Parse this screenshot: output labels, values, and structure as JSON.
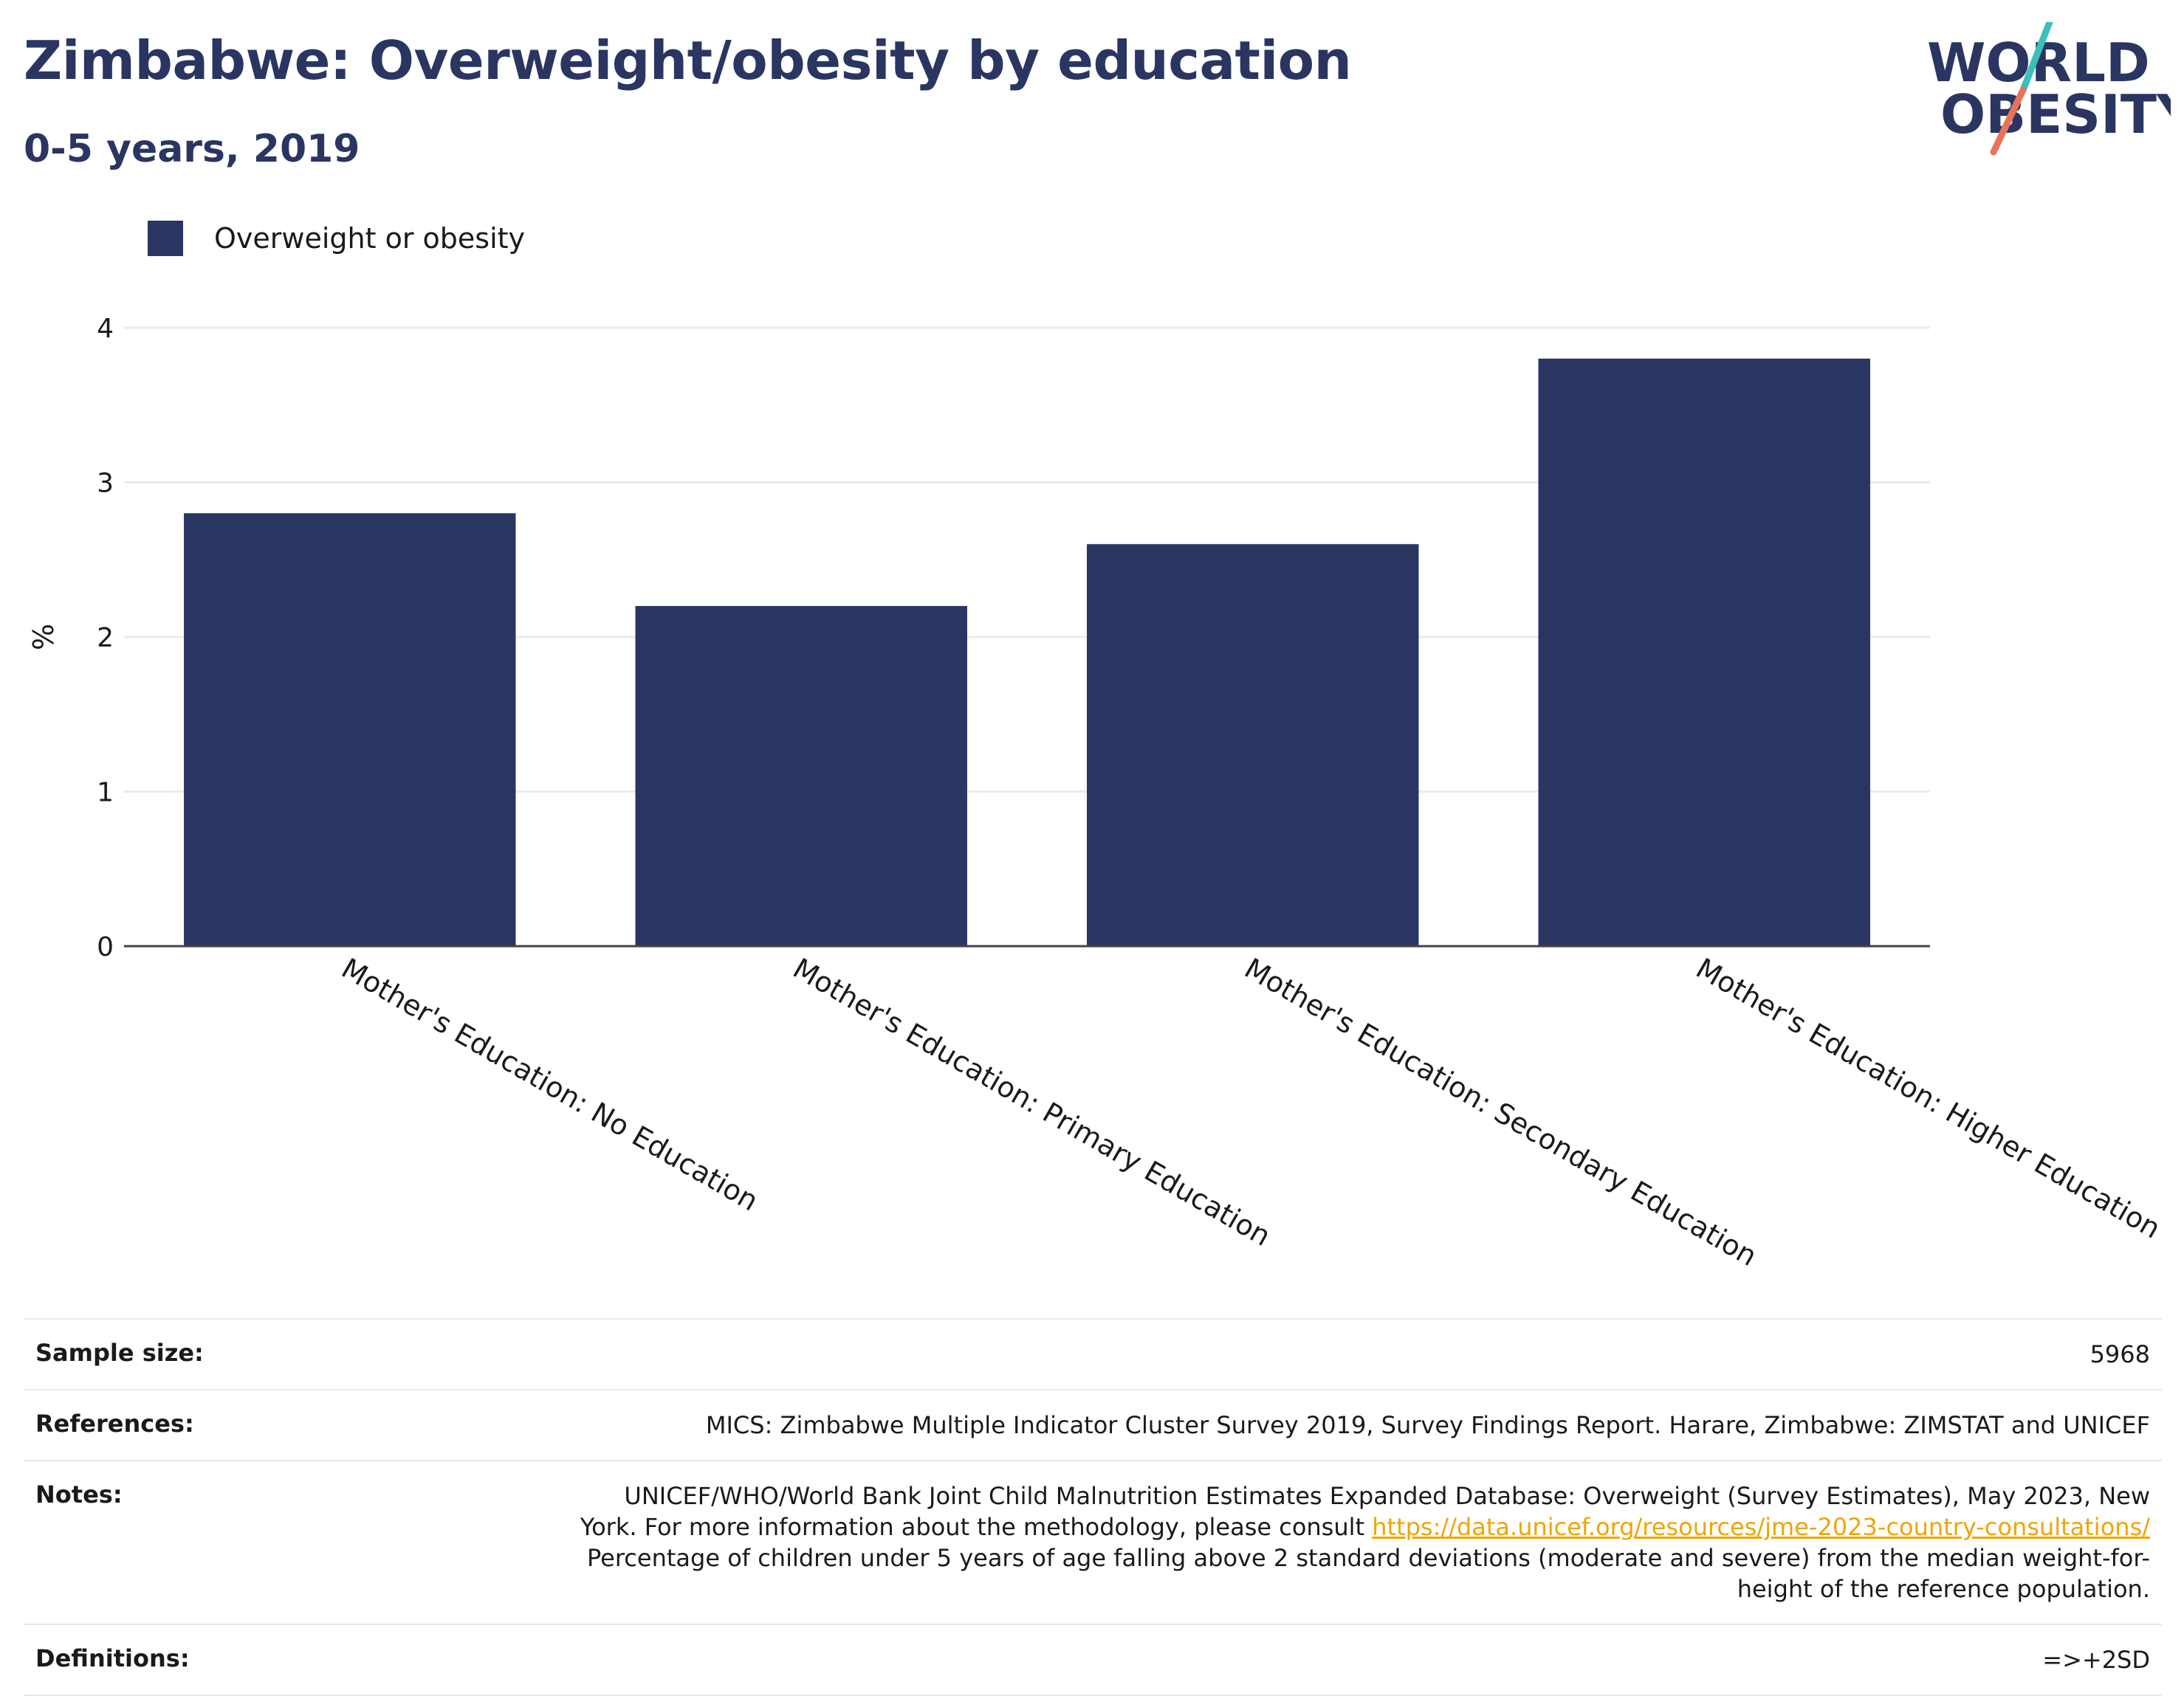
{
  "header": {
    "title": "Zimbabwe: Overweight/obesity by education",
    "subtitle": "0-5 years, 2019"
  },
  "logo": {
    "line1": "WORLD",
    "line2": "OBESITY",
    "accent_colors": [
      "#3bbfb9",
      "#e8735a"
    ]
  },
  "legend": {
    "label": "Overweight or obesity",
    "color": "#2a3562"
  },
  "chart_data": {
    "type": "bar",
    "categories": [
      "Mother's Education: No Education",
      "Mother's Education: Primary Education",
      "Mother's Education: Secondary Education",
      "Mother's Education: Higher Education"
    ],
    "series": [
      {
        "name": "Overweight or obesity",
        "values": [
          2.8,
          2.2,
          2.6,
          3.8
        ],
        "color": "#2a3562"
      }
    ],
    "ylabel": "%",
    "ylim": [
      0,
      4
    ],
    "yticks": [
      0,
      1,
      2,
      3,
      4
    ],
    "grid": true,
    "legend_position": "top-left"
  },
  "info": {
    "sample_size_label": "Sample size:",
    "sample_size_value": "5968",
    "references_label": "References:",
    "references_value": "MICS: Zimbabwe Multiple Indicator Cluster Survey 2019, Survey Findings Report. Harare, Zimbabwe: ZIMSTAT and UNICEF",
    "notes_label": "Notes:",
    "notes_line1": "UNICEF/WHO/World Bank Joint Child Malnutrition Estimates Expanded Database: Overweight (Survey Estimates), May 2023, New",
    "notes_line2": "York. For more information about the methodology, please consult",
    "notes_link": "https://data.unicef.org/resources/jme-2023-country-consultations/",
    "notes_line3": "Percentage of children under 5 years of age falling above 2 standard deviations (moderate and severe) from the median weight-for-",
    "notes_line4": "height of the reference population.",
    "definitions_label": "Definitions:",
    "definitions_value": "=>+2SD"
  }
}
